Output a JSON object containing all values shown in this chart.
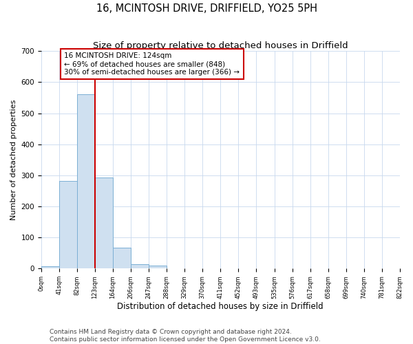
{
  "title": "16, MCINTOSH DRIVE, DRIFFIELD, YO25 5PH",
  "subtitle": "Size of property relative to detached houses in Driffield",
  "xlabel": "Distribution of detached houses by size in Driffield",
  "ylabel": "Number of detached properties",
  "bar_edges": [
    0,
    41,
    82,
    123,
    164,
    206,
    247,
    288,
    329,
    370,
    411,
    452,
    493,
    535,
    576,
    617,
    658,
    699,
    740,
    781,
    822
  ],
  "bar_heights": [
    8,
    283,
    560,
    293,
    68,
    14,
    10,
    0,
    0,
    0,
    0,
    0,
    0,
    0,
    0,
    0,
    0,
    0,
    0,
    0
  ],
  "bar_color": "#cfe0f0",
  "bar_edge_color": "#7bafd4",
  "bar_linewidth": 0.7,
  "vline_x": 124,
  "vline_color": "#cc0000",
  "vline_linewidth": 1.5,
  "annotation_line1": "16 MCINTOSH DRIVE: 124sqm",
  "annotation_line2": "← 69% of detached houses are smaller (848)",
  "annotation_line3": "30% of semi-detached houses are larger (366) →",
  "annotation_box_color": "#cc0000",
  "annotation_fontsize": 7.5,
  "ylim": [
    0,
    700
  ],
  "xlim": [
    0,
    822
  ],
  "tick_labels": [
    "0sqm",
    "41sqm",
    "82sqm",
    "123sqm",
    "164sqm",
    "206sqm",
    "247sqm",
    "288sqm",
    "329sqm",
    "370sqm",
    "411sqm",
    "452sqm",
    "493sqm",
    "535sqm",
    "576sqm",
    "617sqm",
    "658sqm",
    "699sqm",
    "740sqm",
    "781sqm",
    "822sqm"
  ],
  "footer_text": "Contains HM Land Registry data © Crown copyright and database right 2024.\nContains public sector information licensed under the Open Government Licence v3.0.",
  "title_fontsize": 10.5,
  "subtitle_fontsize": 9.5,
  "xlabel_fontsize": 8.5,
  "ylabel_fontsize": 8,
  "footer_fontsize": 6.5,
  "background_color": "#ffffff",
  "grid_color": "#c8d8ee",
  "yticks": [
    0,
    100,
    200,
    300,
    400,
    500,
    600,
    700
  ]
}
